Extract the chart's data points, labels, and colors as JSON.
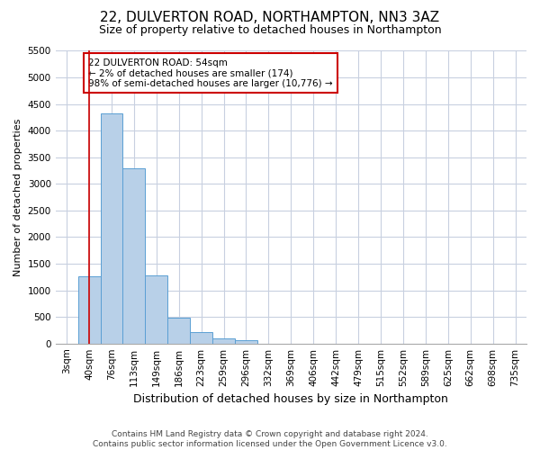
{
  "title1": "22, DULVERTON ROAD, NORTHAMPTON, NN3 3AZ",
  "title2": "Size of property relative to detached houses in Northampton",
  "xlabel": "Distribution of detached houses by size in Northampton",
  "ylabel": "Number of detached properties",
  "footnote": "Contains HM Land Registry data © Crown copyright and database right 2024.\nContains public sector information licensed under the Open Government Licence v3.0.",
  "bar_labels": [
    "3sqm",
    "40sqm",
    "76sqm",
    "113sqm",
    "149sqm",
    "186sqm",
    "223sqm",
    "259sqm",
    "296sqm",
    "332sqm",
    "369sqm",
    "406sqm",
    "442sqm",
    "479sqm",
    "515sqm",
    "552sqm",
    "589sqm",
    "625sqm",
    "662sqm",
    "698sqm",
    "735sqm"
  ],
  "bar_values": [
    0,
    1270,
    4330,
    3300,
    1280,
    490,
    220,
    90,
    60,
    0,
    0,
    0,
    0,
    0,
    0,
    0,
    0,
    0,
    0,
    0,
    0
  ],
  "bar_color": "#b8d0e8",
  "bar_edge_color": "#5a9fd4",
  "vline_x_index": 1,
  "vline_color": "#cc0000",
  "ylim_max": 5500,
  "yticks": [
    0,
    500,
    1000,
    1500,
    2000,
    2500,
    3000,
    3500,
    4000,
    4500,
    5000,
    5500
  ],
  "annotation_text": "22 DULVERTON ROAD: 54sqm\n← 2% of detached houses are smaller (174)\n98% of semi-detached houses are larger (10,776) →",
  "annotation_box_facecolor": "white",
  "annotation_box_edgecolor": "#cc0000",
  "fig_facecolor": "white",
  "plot_facecolor": "white",
  "grid_color": "#c8d0e0",
  "title1_fontsize": 11,
  "title2_fontsize": 9,
  "xlabel_fontsize": 9,
  "ylabel_fontsize": 8,
  "tick_fontsize": 7.5,
  "footnote_fontsize": 6.5
}
